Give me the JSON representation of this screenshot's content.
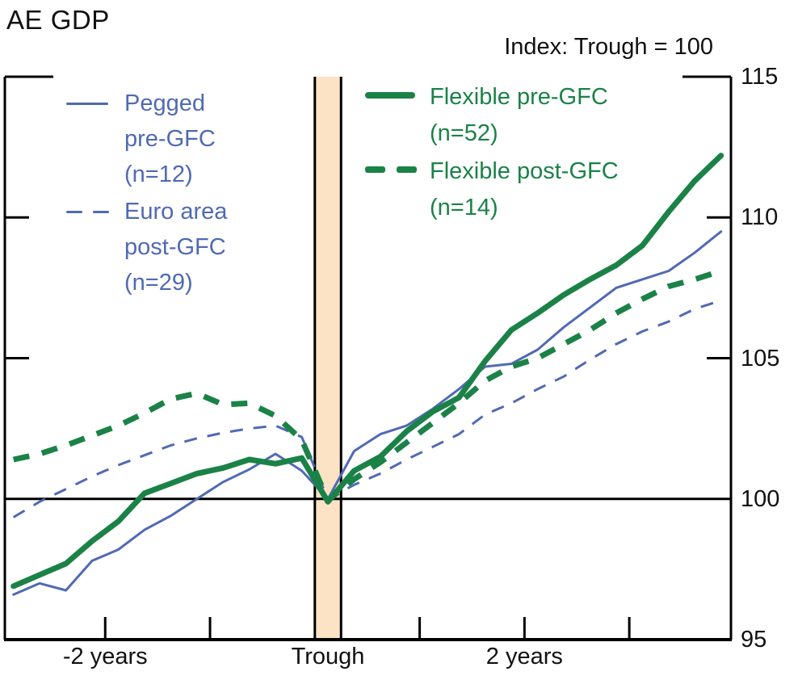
{
  "title": "AE GDP",
  "subtitle": "Index: Trough = 100",
  "colors": {
    "blue": "#5069b4",
    "green": "#1b8247",
    "band": "#fce3c6",
    "axis": "#000000",
    "text": "#111111"
  },
  "legend": {
    "left": [
      {
        "id": "pegged-pre-gfc",
        "style": "solid",
        "color_ref": "blue",
        "label_lines": [
          "Pegged",
          "pre-GFC",
          "(n=12)"
        ]
      },
      {
        "id": "euro-area-post-gfc",
        "style": "dashed",
        "color_ref": "blue",
        "label_lines": [
          "Euro area",
          "post-GFC",
          "(n=29)"
        ]
      }
    ],
    "right": [
      {
        "id": "flexible-pre-gfc",
        "style": "solid",
        "color_ref": "green",
        "label_lines": [
          "Flexible pre-GFC",
          "(n=52)"
        ]
      },
      {
        "id": "flexible-post-gfc",
        "style": "dashed",
        "color_ref": "green",
        "label_lines": [
          "Flexible post-GFC",
          "(n=14)"
        ]
      }
    ]
  },
  "chart_data": {
    "type": "line",
    "title": "AE GDP",
    "unit_note": "Index: Trough = 100",
    "x_unit": "quarters relative to trough",
    "x": [
      -12,
      -11,
      -10,
      -9,
      -8,
      -7,
      -6,
      -5,
      -4,
      -3,
      -2,
      -1,
      0,
      1,
      2,
      3,
      4,
      5,
      6,
      7,
      8,
      9,
      10,
      11,
      12,
      13,
      14,
      15
    ],
    "series": [
      {
        "id": "euro-area-post-gfc",
        "name": "Euro area post-GFC (n=29)",
        "color": "#5069b4",
        "style": "dashed",
        "width": 3,
        "dash": "16 13",
        "values": [
          99.35,
          99.9,
          100.35,
          100.8,
          101.2,
          101.55,
          101.9,
          102.15,
          102.35,
          102.5,
          102.6,
          102.2,
          100.0,
          100.5,
          100.9,
          101.4,
          101.85,
          102.3,
          103.0,
          103.4,
          103.9,
          104.35,
          104.95,
          105.5,
          105.95,
          106.3,
          106.75,
          107.05
        ]
      },
      {
        "id": "pegged-pre-gfc",
        "name": "Pegged pre-GFC (n=12)",
        "color": "#5069b4",
        "style": "solid",
        "width": 3,
        "dash": "",
        "values": [
          96.6,
          97.0,
          96.75,
          97.8,
          98.2,
          98.9,
          99.4,
          100.0,
          100.6,
          101.05,
          101.6,
          101.0,
          100.0,
          101.7,
          102.3,
          102.6,
          103.2,
          103.9,
          104.7,
          104.8,
          105.3,
          106.1,
          106.8,
          107.5,
          107.8,
          108.1,
          108.75,
          109.5
        ]
      },
      {
        "id": "flexible-post-gfc",
        "name": "Flexible post-GFC (n=14)",
        "color": "#1b8247",
        "style": "dashed",
        "width": 7,
        "dash": "20 16",
        "values": [
          101.4,
          101.6,
          101.9,
          102.25,
          102.6,
          103.05,
          103.55,
          103.75,
          103.35,
          103.4,
          102.95,
          102.1,
          99.95,
          100.7,
          101.3,
          102.0,
          102.7,
          103.4,
          104.2,
          104.7,
          105.0,
          105.5,
          106.0,
          106.6,
          107.1,
          107.55,
          107.8,
          108.1
        ]
      },
      {
        "id": "flexible-pre-gfc",
        "name": "Flexible pre-GFC (n=52)",
        "color": "#1b8247",
        "style": "solid",
        "width": 7,
        "dash": "",
        "values": [
          96.9,
          97.3,
          97.7,
          98.5,
          99.2,
          100.2,
          100.55,
          100.9,
          101.1,
          101.4,
          101.25,
          101.45,
          99.9,
          101.0,
          101.5,
          102.4,
          103.1,
          103.6,
          104.9,
          106.0,
          106.6,
          107.25,
          107.8,
          108.3,
          109.0,
          110.2,
          111.3,
          112.2
        ]
      }
    ],
    "ylim": [
      95,
      115
    ],
    "yticks": [
      95,
      100,
      105,
      110,
      115
    ],
    "yticks_inner": [
      105,
      110
    ],
    "baseline": 100,
    "xlim": [
      -12.33,
      15.38
    ],
    "xticks": [
      -8.5,
      -4.5,
      3.5,
      7.5,
      11.5
    ],
    "xtick_labels": [
      {
        "text": "-2 years",
        "q": -8.5
      },
      {
        "text": "Trough",
        "q": 0
      },
      {
        "text": "2 years",
        "q": 7.5
      }
    ],
    "trough_band": {
      "from": -0.5,
      "to": 0.5
    },
    "grid": false,
    "legend_position": "top-inside"
  }
}
